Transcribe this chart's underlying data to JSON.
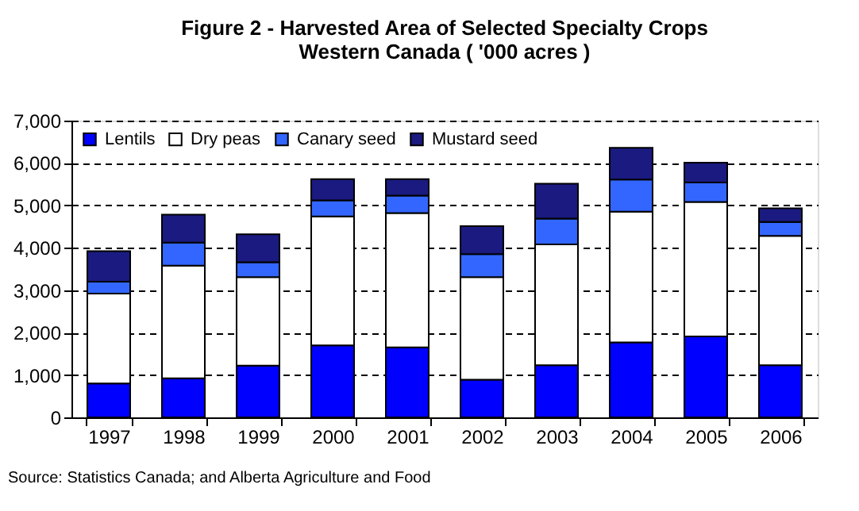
{
  "chart_data": {
    "type": "bar",
    "stacked": true,
    "title": "Figure 2 - Harvested Area of Selected Specialty Crops\nWestern Canada ( '000 acres )",
    "categories": [
      "1997",
      "1998",
      "1999",
      "2000",
      "2001",
      "2002",
      "2003",
      "2004",
      "2005",
      "2006"
    ],
    "series": [
      {
        "name": "Lentils",
        "color": "#0000ff",
        "values": [
          800,
          920,
          1220,
          1700,
          1650,
          890,
          1230,
          1770,
          1910,
          1230
        ]
      },
      {
        "name": "Dry peas",
        "color": "#ffffff",
        "values": [
          2120,
          2660,
          2090,
          3040,
          3170,
          2420,
          2850,
          3080,
          3170,
          3050
        ]
      },
      {
        "name": "Canary seed",
        "color": "#3366ff",
        "values": [
          280,
          540,
          350,
          380,
          410,
          540,
          610,
          760,
          460,
          330
        ]
      },
      {
        "name": "Mustard seed",
        "color": "#1a1a80",
        "values": [
          720,
          660,
          660,
          500,
          390,
          660,
          820,
          750,
          470,
          320
        ]
      }
    ],
    "ylim": [
      0,
      7000
    ],
    "yticks": [
      {
        "value": 0,
        "label": "0"
      },
      {
        "value": 1000,
        "label": "1,000"
      },
      {
        "value": 2000,
        "label": "2,000"
      },
      {
        "value": 3000,
        "label": "3,000"
      },
      {
        "value": 4000,
        "label": "4,000"
      },
      {
        "value": 5000,
        "label": "5,000"
      },
      {
        "value": 6000,
        "label": "6,000"
      },
      {
        "value": 7000,
        "label": "7,000"
      }
    ],
    "grid": "y",
    "legend": "top left",
    "annotations": [
      "Source: Statistics Canada; and Alberta Agriculture and Food"
    ]
  }
}
